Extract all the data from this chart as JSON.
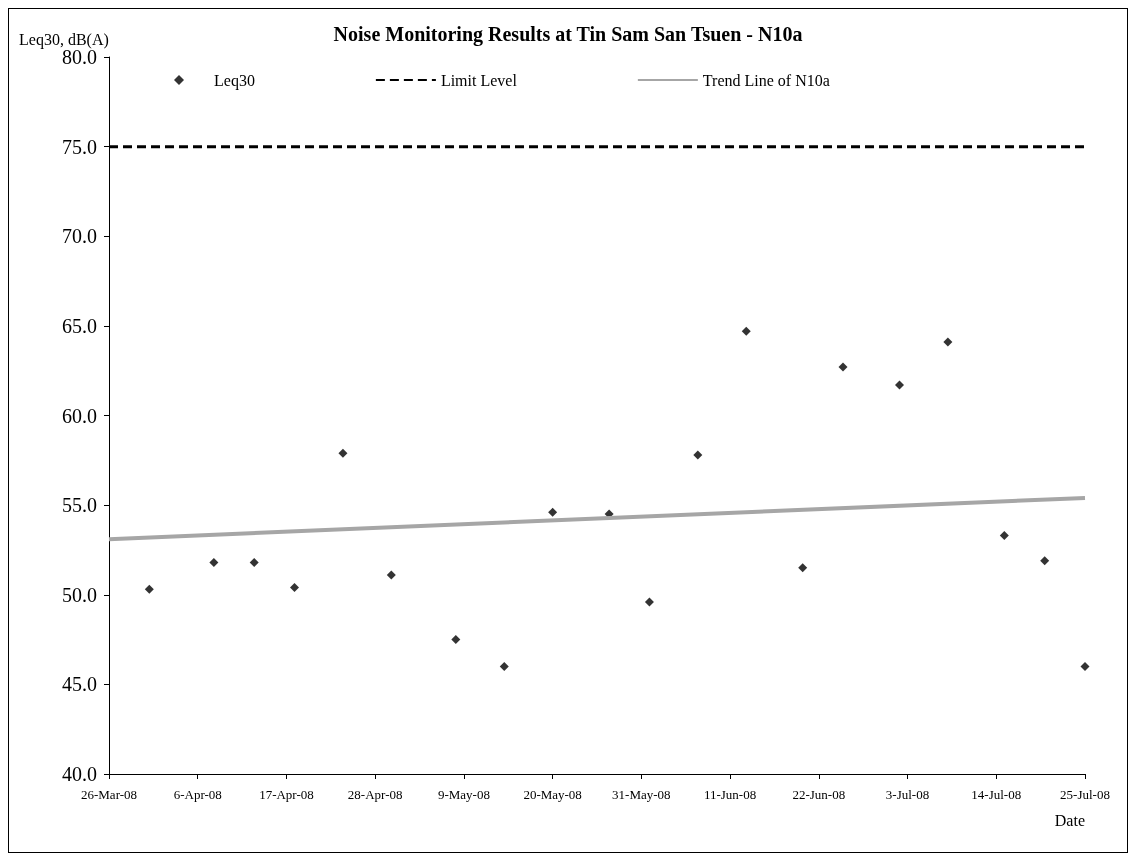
{
  "chart_data": {
    "type": "scatter",
    "title": "Noise Monitoring Results at Tin Sam San Tsuen - N10a",
    "xlabel": "Date",
    "ylabel": "Leq30, dB(A)",
    "x": [
      "--03-31",
      "--04-08",
      "--04-13",
      "--04-18",
      "--04-24",
      "--04-30",
      "--05-08",
      "--05-14",
      "--05-20",
      "--05-27",
      "--06-01",
      "--06-07",
      "--06-13",
      "--06-20",
      "--06-25",
      "--07-02",
      "--07-08",
      "--07-15",
      "--07-20",
      "--07-25"
    ],
    "series": [
      {
        "name": "Leq30",
        "color": "#000000",
        "marker": "diamond",
        "values": [
          50.3,
          51.8,
          51.8,
          50.4,
          57.9,
          51.1,
          47.5,
          46.0,
          54.6,
          54.5,
          49.6,
          57.8,
          64.7,
          51.5,
          62.7,
          61.7,
          64.1,
          53.3,
          51.9,
          46.0
        ]
      },
      {
        "name": "Trend Line of N10a",
        "type": "line",
        "color": "#a6a6a6",
        "marker": "none",
        "x": [
          "--03-26",
          "--07-25"
        ],
        "values": [
          53.1,
          55.4
        ]
      }
    ],
    "ref_lines": [
      {
        "axis": "y",
        "value": 75,
        "label": "Limit Level",
        "color": "#000000",
        "line_style": "dashed"
      }
    ],
    "xlim": [
      "--03-26",
      "--07-25"
    ],
    "xticks": [
      {
        "value": "--03-26",
        "label": "26-Mar-08"
      },
      {
        "value": "--04-06",
        "label": "6-Apr-08"
      },
      {
        "value": "--04-17",
        "label": "17-Apr-08"
      },
      {
        "value": "--04-28",
        "label": "28-Apr-08"
      },
      {
        "value": "--05-09",
        "label": "9-May-08"
      },
      {
        "value": "--05-20",
        "label": "20-May-08"
      },
      {
        "value": "--05-31",
        "label": "31-May-08"
      },
      {
        "value": "--06-11",
        "label": "11-Jun-08"
      },
      {
        "value": "--06-22",
        "label": "22-Jun-08"
      },
      {
        "value": "--07-03",
        "label": "3-Jul-08"
      },
      {
        "value": "--07-14",
        "label": "14-Jul-08"
      },
      {
        "value": "--07-25",
        "label": "25-Jul-08"
      }
    ],
    "ylim": [
      40,
      80
    ],
    "yticks": [
      {
        "value": 40,
        "label": "40.0"
      },
      {
        "value": 45,
        "label": "45.0"
      },
      {
        "value": 50,
        "label": "50.0"
      },
      {
        "value": 55,
        "label": "55.0"
      },
      {
        "value": 60,
        "label": "60.0"
      },
      {
        "value": 65,
        "label": "65.0"
      },
      {
        "value": 70,
        "label": "70.0"
      },
      {
        "value": 75,
        "label": "75.0"
      },
      {
        "value": 80,
        "label": "80.0"
      }
    ],
    "grid": false,
    "legend": "top"
  }
}
